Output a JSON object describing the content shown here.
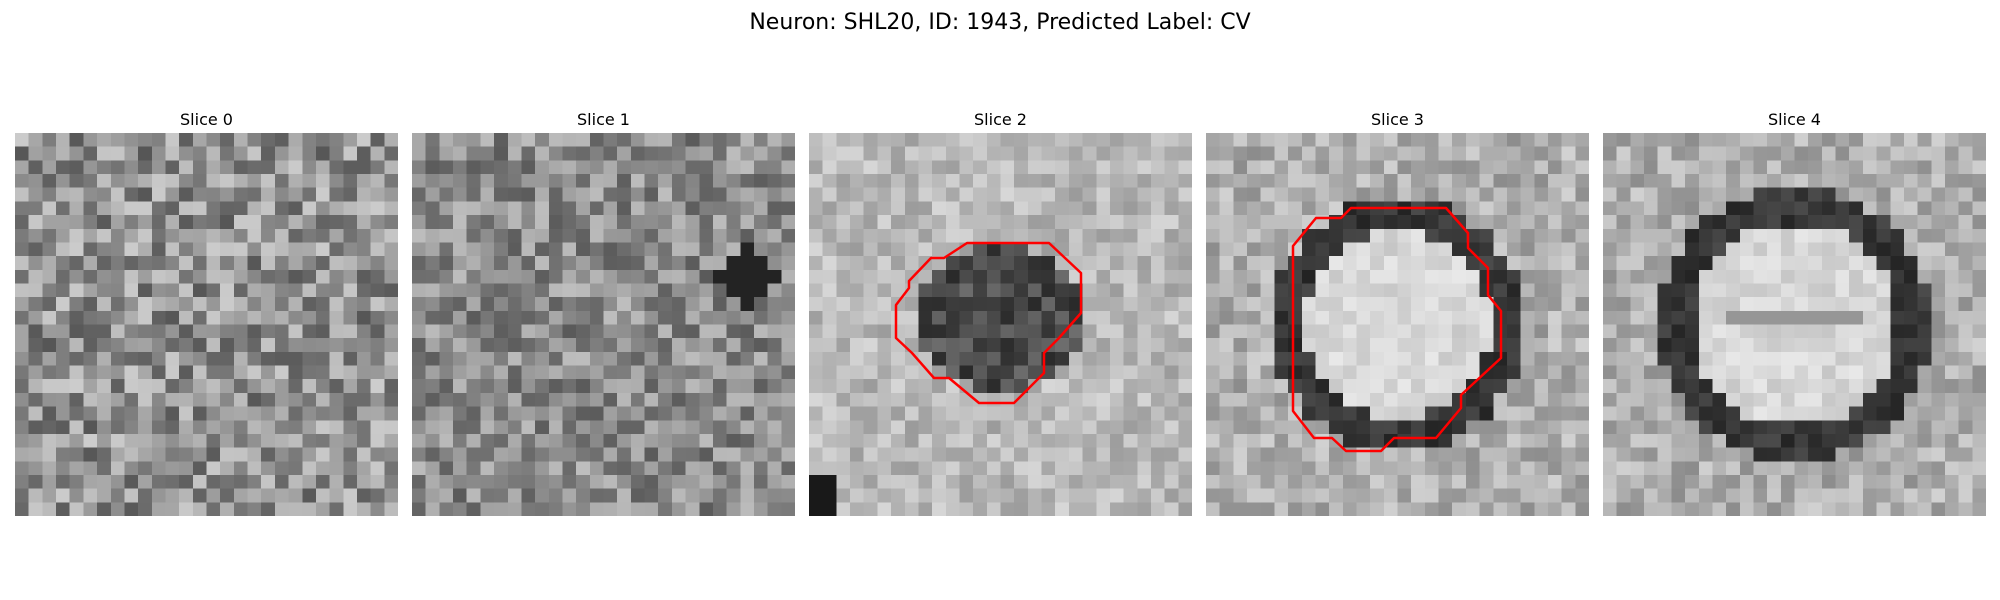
{
  "figure": {
    "title": "Neuron: SHL20, ID: 1943, Predicted Label: CV",
    "contour_color": "#ff0000",
    "colormap": "gray",
    "slices": [
      {
        "label": "Slice 0",
        "structure": "noise",
        "contour": false
      },
      {
        "label": "Slice 1",
        "structure": "faint-dark-blobs",
        "contour": false
      },
      {
        "label": "Slice 2",
        "structure": "dark-vesicle-core",
        "contour": true
      },
      {
        "label": "Slice 3",
        "structure": "dark-ring-bright-center",
        "contour": true
      },
      {
        "label": "Slice 4",
        "structure": "dark-ring-bright-center",
        "contour": false
      }
    ]
  }
}
